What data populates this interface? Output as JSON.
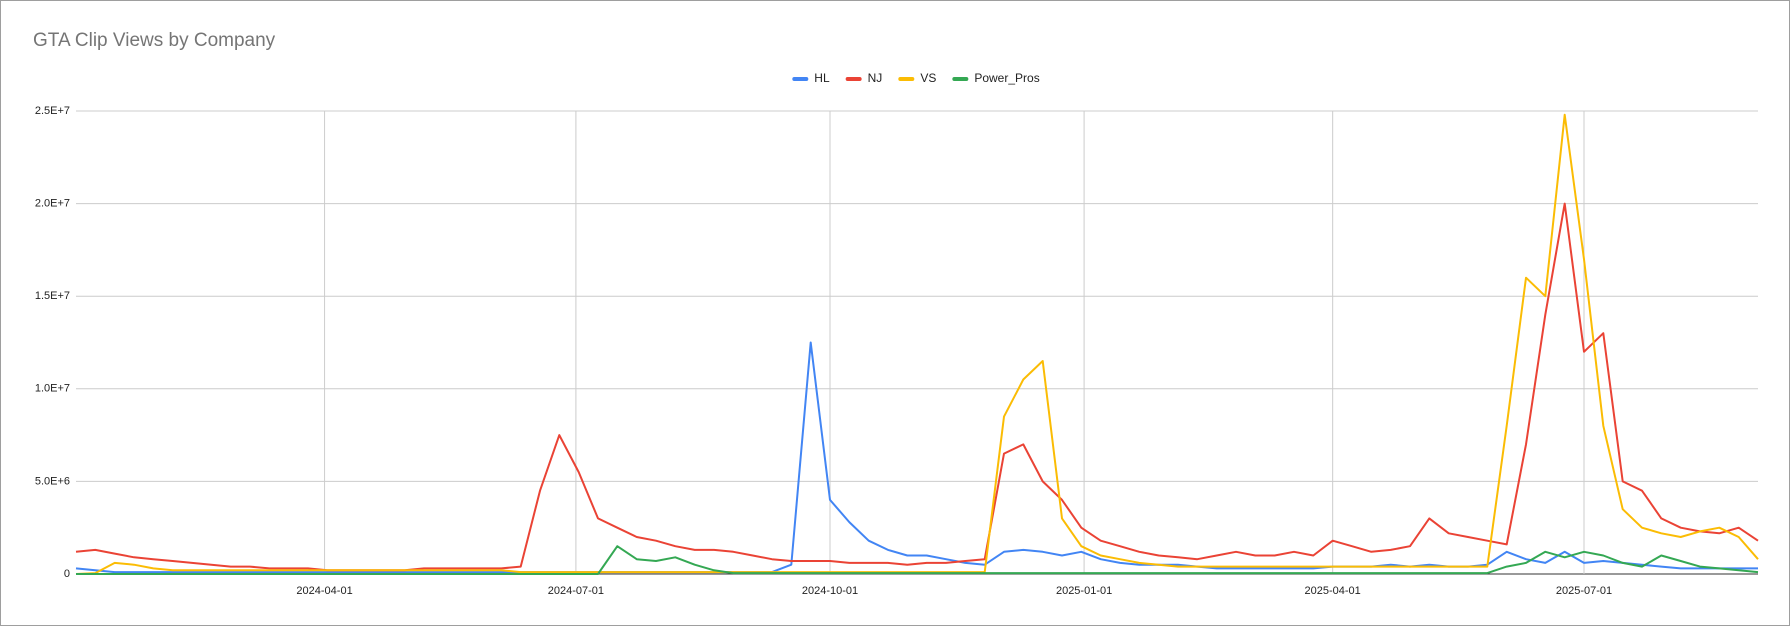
{
  "chart_data": {
    "type": "line",
    "title": "GTA Clip Views by Company",
    "x": [
      "2024-01-02",
      "2024-01-09",
      "2024-01-16",
      "2024-01-23",
      "2024-01-30",
      "2024-02-06",
      "2024-02-13",
      "2024-02-20",
      "2024-02-27",
      "2024-03-05",
      "2024-03-12",
      "2024-03-19",
      "2024-03-26",
      "2024-04-02",
      "2024-04-09",
      "2024-04-16",
      "2024-04-23",
      "2024-04-30",
      "2024-05-07",
      "2024-05-14",
      "2024-05-21",
      "2024-05-28",
      "2024-06-04",
      "2024-06-11",
      "2024-06-18",
      "2024-06-25",
      "2024-07-02",
      "2024-07-09",
      "2024-07-16",
      "2024-07-23",
      "2024-07-30",
      "2024-08-06",
      "2024-08-13",
      "2024-08-20",
      "2024-08-27",
      "2024-09-03",
      "2024-09-10",
      "2024-09-17",
      "2024-09-24",
      "2024-10-01",
      "2024-10-08",
      "2024-10-15",
      "2024-10-22",
      "2024-10-29",
      "2024-11-05",
      "2024-11-12",
      "2024-11-19",
      "2024-11-26",
      "2024-12-03",
      "2024-12-10",
      "2024-12-17",
      "2024-12-24",
      "2024-12-31",
      "2025-01-07",
      "2025-01-14",
      "2025-01-21",
      "2025-01-28",
      "2025-02-04",
      "2025-02-11",
      "2025-02-18",
      "2025-02-25",
      "2025-03-04",
      "2025-03-11",
      "2025-03-18",
      "2025-03-25",
      "2025-04-01",
      "2025-04-08",
      "2025-04-15",
      "2025-04-22",
      "2025-04-29",
      "2025-05-06",
      "2025-05-13",
      "2025-05-20",
      "2025-05-27",
      "2025-06-03",
      "2025-06-10",
      "2025-06-17",
      "2025-06-24",
      "2025-07-01",
      "2025-07-08",
      "2025-07-15",
      "2025-07-22",
      "2025-07-29",
      "2025-08-05",
      "2025-08-12",
      "2025-08-19",
      "2025-08-26",
      "2025-09-02"
    ],
    "xlim": [
      "2024-01-02",
      "2025-09-02"
    ],
    "xticks": [
      "2024-04-01",
      "2024-07-01",
      "2024-10-01",
      "2025-01-01",
      "2025-04-01",
      "2025-07-01"
    ],
    "ylim": [
      0,
      25000000
    ],
    "yticks": [
      0,
      {
        "value": 5000000,
        "label": "5.0E+6"
      },
      {
        "value": 10000000,
        "label": "1.0E+7"
      },
      {
        "value": 15000000,
        "label": "1.5E+7"
      },
      {
        "value": 20000000,
        "label": "2.0E+7"
      },
      {
        "value": 25000000,
        "label": "2.5E+7"
      }
    ],
    "grid": true,
    "legend": "top",
    "series": [
      {
        "name": "HL",
        "color": "#4285f4",
        "values": [
          300000,
          200000,
          100000,
          100000,
          100000,
          100000,
          100000,
          100000,
          100000,
          100000,
          100000,
          100000,
          100000,
          100000,
          100000,
          100000,
          100000,
          100000,
          100000,
          100000,
          100000,
          100000,
          100000,
          100000,
          100000,
          100000,
          100000,
          100000,
          100000,
          100000,
          100000,
          100000,
          100000,
          100000,
          100000,
          100000,
          100000,
          500000,
          12500000,
          4000000,
          2800000,
          1800000,
          1300000,
          1000000,
          1000000,
          800000,
          600000,
          500000,
          1200000,
          1300000,
          1200000,
          1000000,
          1200000,
          800000,
          600000,
          500000,
          500000,
          500000,
          400000,
          300000,
          300000,
          300000,
          300000,
          300000,
          300000,
          400000,
          400000,
          400000,
          500000,
          400000,
          500000,
          400000,
          400000,
          500000,
          1200000,
          800000,
          600000,
          1200000,
          600000,
          700000,
          600000,
          500000,
          400000,
          300000,
          300000,
          300000,
          300000,
          300000
        ]
      },
      {
        "name": "NJ",
        "color": "#ea4335",
        "values": [
          1200000,
          1300000,
          1100000,
          900000,
          800000,
          700000,
          600000,
          500000,
          400000,
          400000,
          300000,
          300000,
          300000,
          200000,
          200000,
          200000,
          200000,
          200000,
          300000,
          300000,
          300000,
          300000,
          300000,
          400000,
          4500000,
          7500000,
          5500000,
          3000000,
          2500000,
          2000000,
          1800000,
          1500000,
          1300000,
          1300000,
          1200000,
          1000000,
          800000,
          700000,
          700000,
          700000,
          600000,
          600000,
          600000,
          500000,
          600000,
          600000,
          700000,
          800000,
          6500000,
          7000000,
          5000000,
          4000000,
          2500000,
          1800000,
          1500000,
          1200000,
          1000000,
          900000,
          800000,
          1000000,
          1200000,
          1000000,
          1000000,
          1200000,
          1000000,
          1800000,
          1500000,
          1200000,
          1300000,
          1500000,
          3000000,
          2200000,
          2000000,
          1800000,
          1600000,
          7000000,
          14000000,
          20000000,
          12000000,
          13000000,
          5000000,
          4500000,
          3000000,
          2500000,
          2300000,
          2200000,
          2500000,
          1800000
        ]
      },
      {
        "name": "VS",
        "color": "#fbbc04",
        "values": [
          0,
          50000,
          600000,
          500000,
          300000,
          200000,
          200000,
          200000,
          200000,
          200000,
          200000,
          200000,
          200000,
          200000,
          200000,
          200000,
          200000,
          200000,
          200000,
          200000,
          200000,
          200000,
          200000,
          100000,
          100000,
          100000,
          100000,
          100000,
          100000,
          100000,
          100000,
          100000,
          100000,
          100000,
          100000,
          100000,
          100000,
          100000,
          100000,
          100000,
          100000,
          100000,
          100000,
          100000,
          100000,
          100000,
          100000,
          100000,
          8500000,
          10500000,
          11500000,
          3000000,
          1500000,
          1000000,
          800000,
          600000,
          500000,
          400000,
          400000,
          400000,
          400000,
          400000,
          400000,
          400000,
          400000,
          400000,
          400000,
          400000,
          400000,
          400000,
          400000,
          400000,
          400000,
          400000,
          8000000,
          16000000,
          15000000,
          24800000,
          17000000,
          8000000,
          3500000,
          2500000,
          2200000,
          2000000,
          2300000,
          2500000,
          2000000,
          800000
        ]
      },
      {
        "name": "Power_Pros",
        "color": "#34a853",
        "values": [
          0,
          0,
          0,
          0,
          0,
          0,
          0,
          0,
          0,
          0,
          0,
          0,
          0,
          0,
          0,
          0,
          0,
          0,
          0,
          0,
          0,
          0,
          0,
          0,
          0,
          0,
          0,
          0,
          1500000,
          800000,
          700000,
          900000,
          500000,
          200000,
          50000,
          50000,
          50000,
          50000,
          50000,
          50000,
          50000,
          50000,
          50000,
          50000,
          50000,
          50000,
          50000,
          50000,
          50000,
          50000,
          50000,
          50000,
          50000,
          50000,
          50000,
          50000,
          50000,
          50000,
          50000,
          50000,
          50000,
          50000,
          50000,
          50000,
          50000,
          50000,
          50000,
          50000,
          50000,
          50000,
          50000,
          50000,
          50000,
          50000,
          400000,
          600000,
          1200000,
          900000,
          1200000,
          1000000,
          600000,
          400000,
          1000000,
          700000,
          400000,
          300000,
          200000,
          100000
        ]
      }
    ]
  }
}
